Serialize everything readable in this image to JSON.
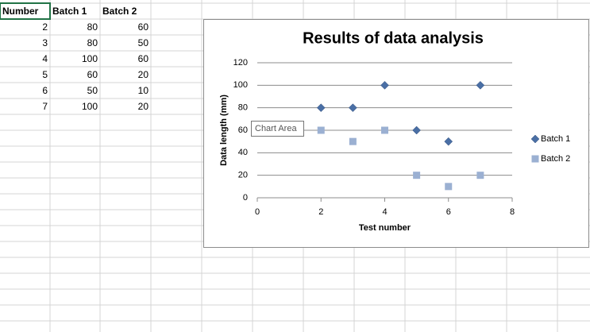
{
  "sheet": {
    "header": [
      "Number",
      "Batch 1",
      "Batch 2"
    ],
    "rows": [
      [
        2,
        80,
        60
      ],
      [
        3,
        80,
        50
      ],
      [
        4,
        100,
        60
      ],
      [
        5,
        60,
        20
      ],
      [
        6,
        50,
        10
      ],
      [
        7,
        100,
        20
      ]
    ]
  },
  "tooltip": "Chart Area",
  "chart_data": {
    "type": "scatter",
    "title": "Results of data analysis",
    "x_label": "Test number",
    "y_label": "Data length (mm)",
    "x": [
      2,
      3,
      4,
      5,
      6,
      7
    ],
    "series": [
      {
        "name": "Batch 1",
        "color": "#4a6fa5",
        "marker": "diamond",
        "values": [
          80,
          80,
          100,
          60,
          50,
          100
        ]
      },
      {
        "name": "Batch 2",
        "color": "#9bb0d2",
        "marker": "square",
        "values": [
          60,
          50,
          60,
          20,
          10,
          20
        ]
      }
    ],
    "xlim": [
      0,
      8
    ],
    "xticks": [
      0,
      2,
      4,
      6,
      8
    ],
    "ylim": [
      0,
      120
    ],
    "yticks": [
      0,
      20,
      40,
      60,
      80,
      100,
      120
    ],
    "grid": true,
    "legend": "right"
  }
}
